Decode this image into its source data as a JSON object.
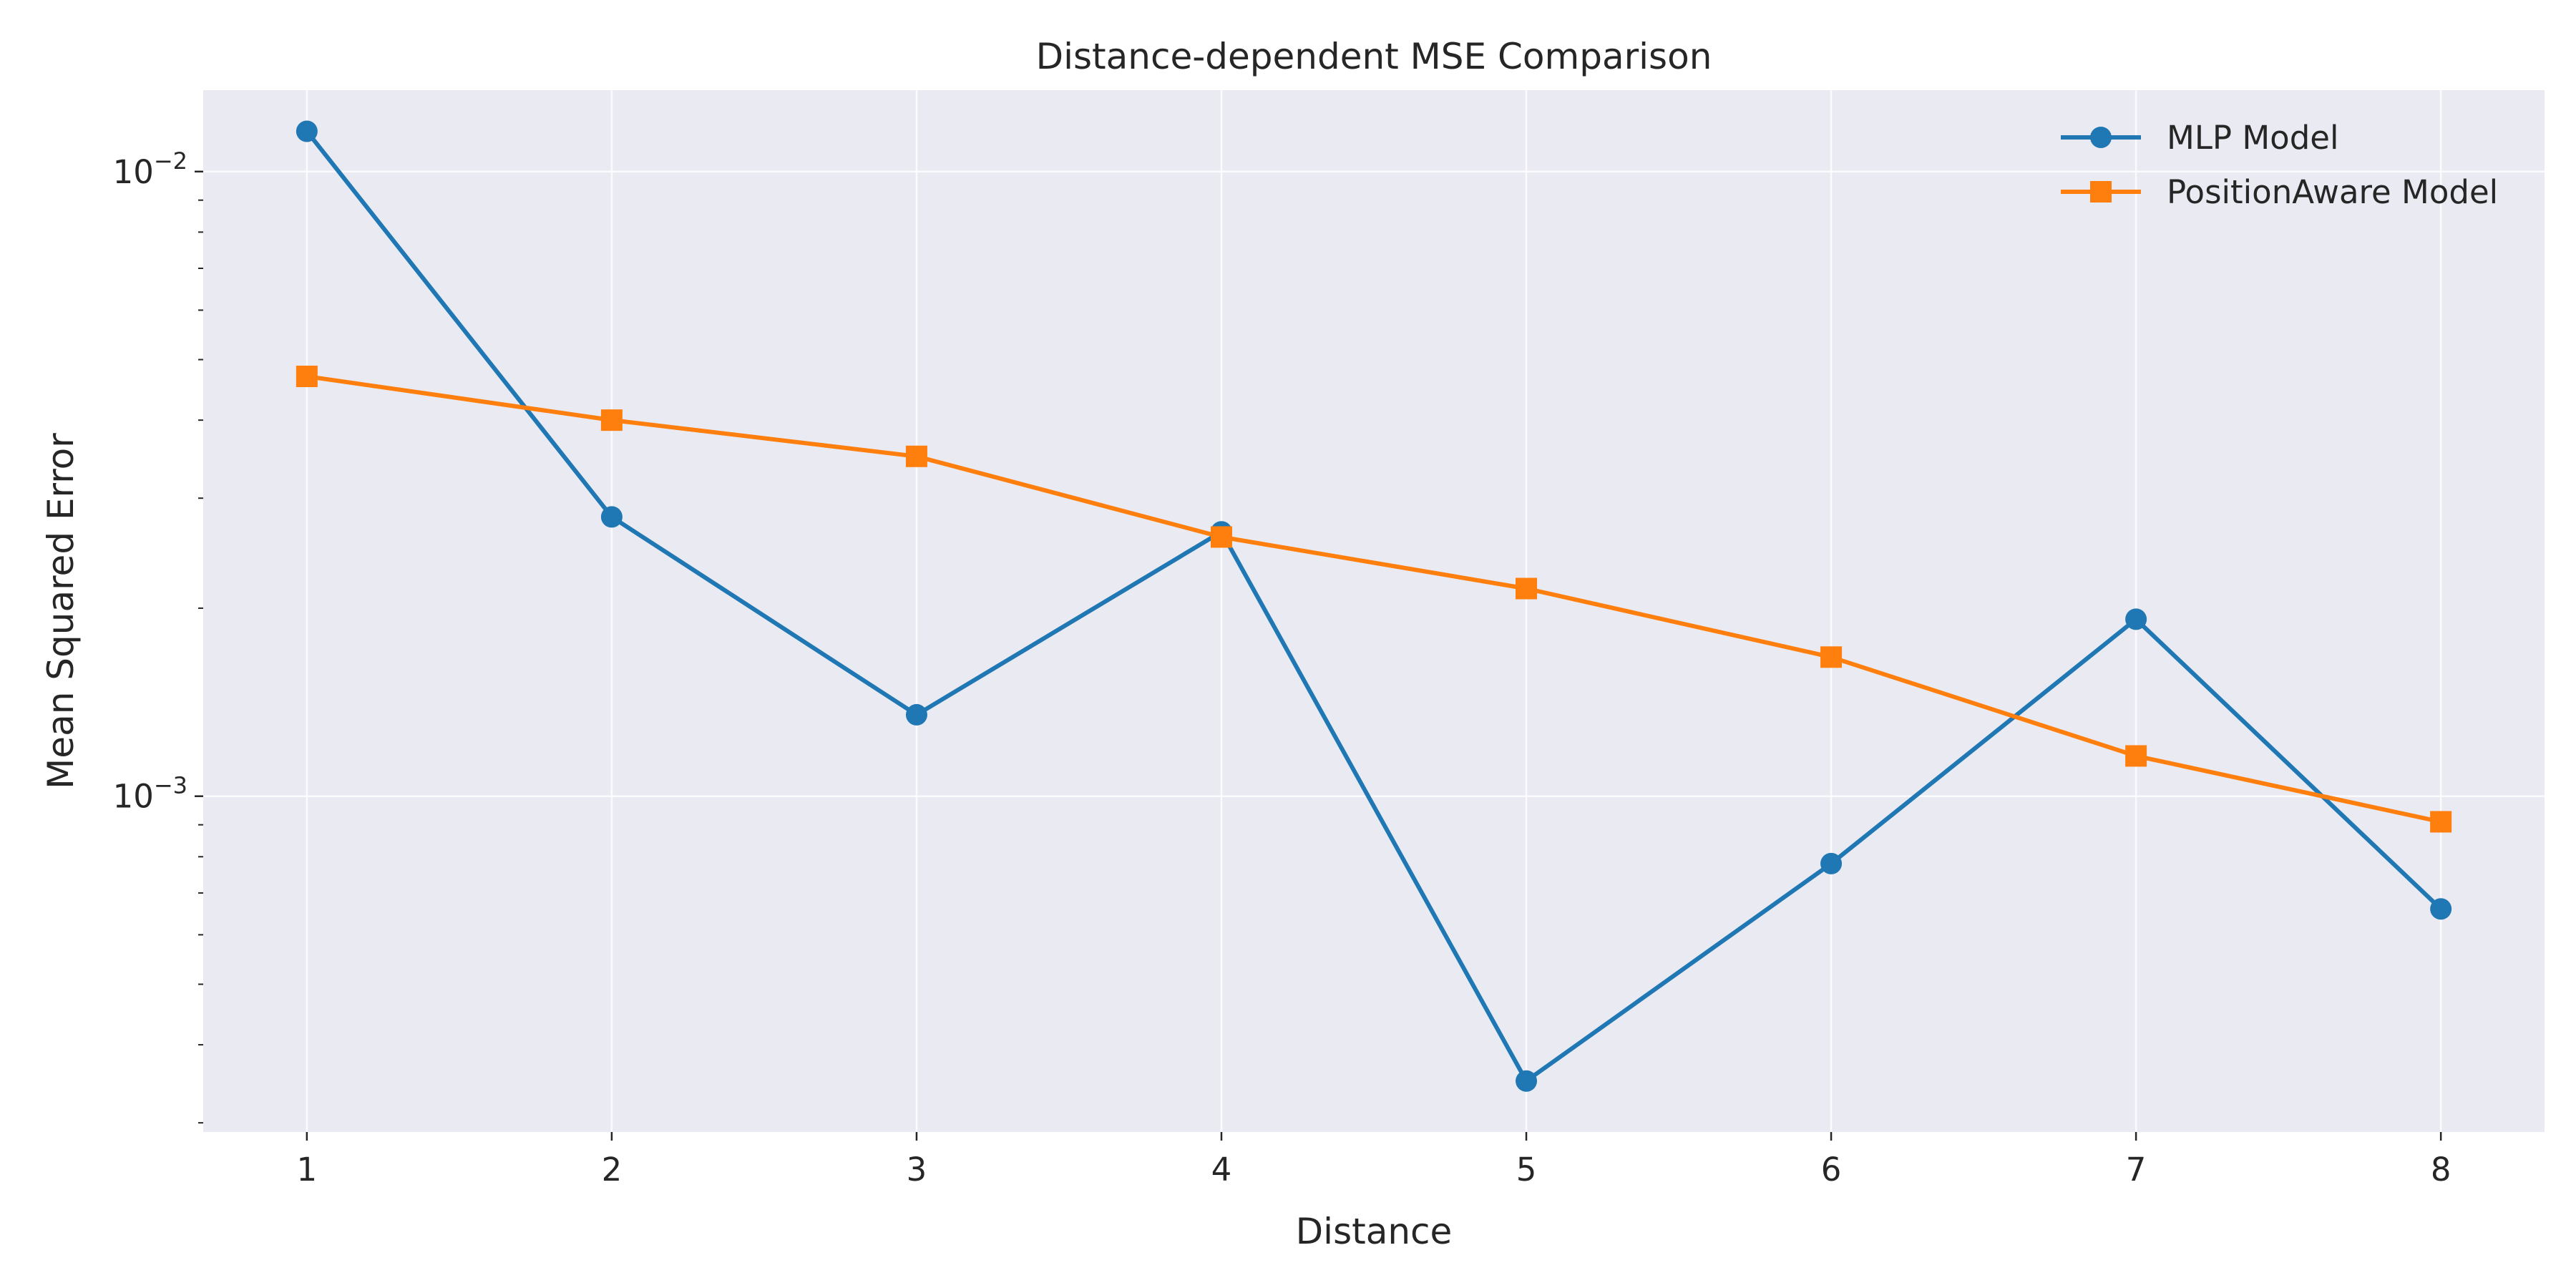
{
  "chart_data": {
    "type": "line",
    "title": "Distance-dependent MSE Comparison",
    "xlabel": "Distance",
    "ylabel": "Mean Squared Error",
    "x": [
      1,
      2,
      3,
      4,
      5,
      6,
      7,
      8
    ],
    "xticks": [
      "1",
      "2",
      "3",
      "4",
      "5",
      "6",
      "7",
      "8"
    ],
    "xlim": [
      0.66,
      8.34
    ],
    "yscale": "log",
    "ylim": [
      0.00029,
      0.0135
    ],
    "yticks": [
      {
        "value": 0.01,
        "base": "10",
        "exp": "−2"
      },
      {
        "value": 0.001,
        "base": "10",
        "exp": "−3"
      }
    ],
    "grid": true,
    "legend": "top-right",
    "series": [
      {
        "name": "MLP Model",
        "marker": "circle",
        "color": "#1f77b4",
        "values": [
          0.0116,
          0.0028,
          0.00135,
          0.00265,
          0.00035,
          0.00078,
          0.00192,
          0.00066
        ]
      },
      {
        "name": "PositionAware Model",
        "marker": "square",
        "color": "#ff7f0e",
        "values": [
          0.0047,
          0.004,
          0.0035,
          0.0026,
          0.00215,
          0.00167,
          0.00116,
          0.00091
        ]
      }
    ]
  },
  "style": {
    "plot_background": "#eaeaf2",
    "grid_color": "#ffffff",
    "text_color": "#262626"
  }
}
